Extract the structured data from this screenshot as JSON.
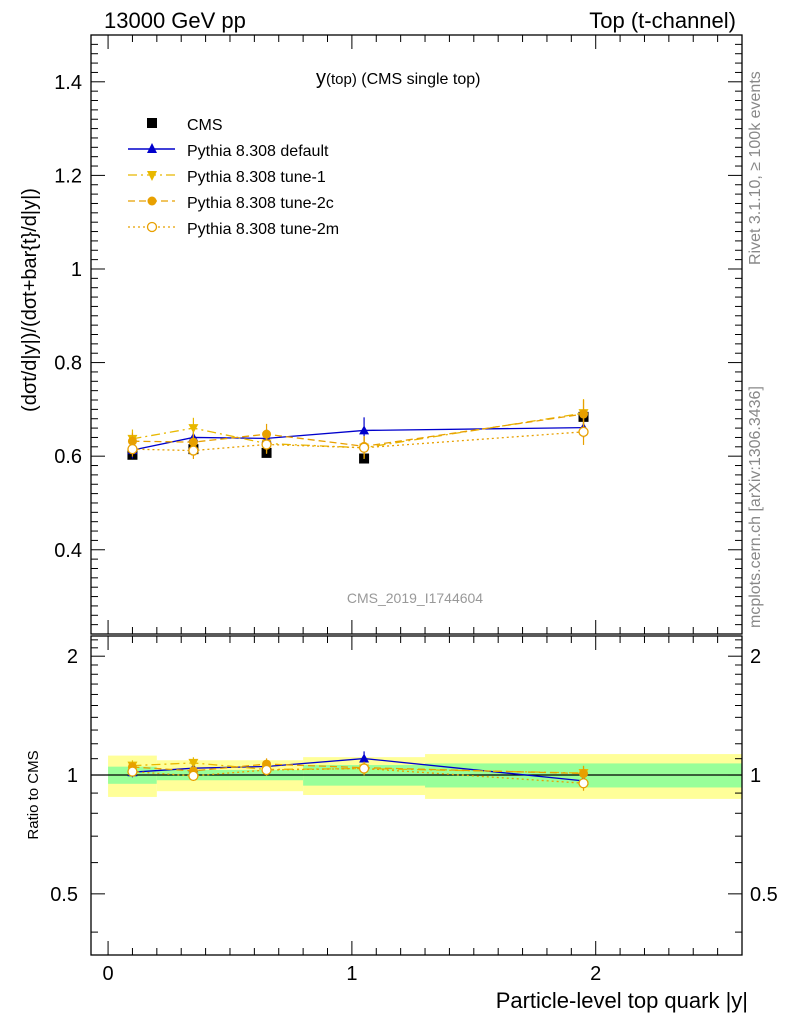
{
  "header": {
    "left": "13000 GeV pp",
    "right": "Top (t-channel)"
  },
  "side": {
    "rivet": "Rivet 3.1.10, ≥ 100k events",
    "mcplots": "mcplots.cern.ch [arXiv:1306.3436]"
  },
  "title_main": "y",
  "title_sub": "(top)",
  "title_rest": " (CMS single top)",
  "watermark": "CMS_2019_I1744604",
  "ylabel_main": "(dσt/d|y|)/(dσt+bar{t}/d|y|)",
  "ylabel_ratio": "Ratio to CMS",
  "xlabel": "Particle-level top quark |y|",
  "chart_data": {
    "type": "line",
    "x_edges": [
      0,
      0.2,
      0.5,
      0.8,
      1.3,
      2.6
    ],
    "x_centers": [
      0.1,
      0.35,
      0.65,
      1.05,
      1.95
    ],
    "xlim": [
      -0.07,
      2.6
    ],
    "ylim_main": [
      0.22,
      1.5
    ],
    "ylim_ratio": [
      0.35,
      2.25
    ],
    "xticks": [
      0,
      1,
      2
    ],
    "xtick_labels": [
      "0",
      "1",
      "2"
    ],
    "yticks_main": [
      0.4,
      0.6,
      0.8,
      1.0,
      1.2,
      1.4
    ],
    "ytick_labels_main": [
      "0.4",
      "0.6",
      "0.8",
      "1",
      "1.2",
      "1.4"
    ],
    "yticks_ratio": [
      0.5,
      1,
      2
    ],
    "ytick_labels_ratio": [
      "0.5",
      "1",
      "2"
    ],
    "legend_position": "top-left",
    "data": {
      "name": "CMS",
      "values": [
        0.603,
        0.615,
        0.607,
        0.595,
        0.684
      ],
      "band_inner": [
        0.05,
        0.03,
        0.03,
        0.06,
        0.07
      ],
      "band_outer": [
        0.12,
        0.09,
        0.09,
        0.11,
        0.13
      ]
    },
    "series": [
      {
        "name": "Pythia 8.308 default",
        "color": "#0000cc",
        "dash": "",
        "marker": "triangle-up",
        "values": [
          0.613,
          0.64,
          0.638,
          0.655,
          0.661
        ],
        "errors": [
          0.018,
          0.02,
          0.02,
          0.028,
          0.022
        ]
      },
      {
        "name": "Pythia 8.308 tune-1",
        "color": "#e8b800",
        "dash": "9,4,2,4",
        "marker": "triangle-down",
        "values": [
          0.637,
          0.66,
          0.627,
          0.618,
          0.692
        ],
        "errors": [
          0.02,
          0.022,
          0.02,
          0.024,
          0.03
        ]
      },
      {
        "name": "Pythia 8.308 tune-2c",
        "color": "#e8a000",
        "dash": "7,4",
        "marker": "circle-filled",
        "values": [
          0.632,
          0.63,
          0.647,
          0.621,
          0.69
        ],
        "errors": [
          0.018,
          0.018,
          0.022,
          0.022,
          0.03
        ]
      },
      {
        "name": "Pythia 8.308 tune-2m",
        "color": "#e8a000",
        "dash": "2,3",
        "marker": "circle-open",
        "values": [
          0.615,
          0.612,
          0.625,
          0.618,
          0.652
        ],
        "errors": [
          0.016,
          0.018,
          0.02,
          0.022,
          0.028
        ]
      }
    ]
  }
}
